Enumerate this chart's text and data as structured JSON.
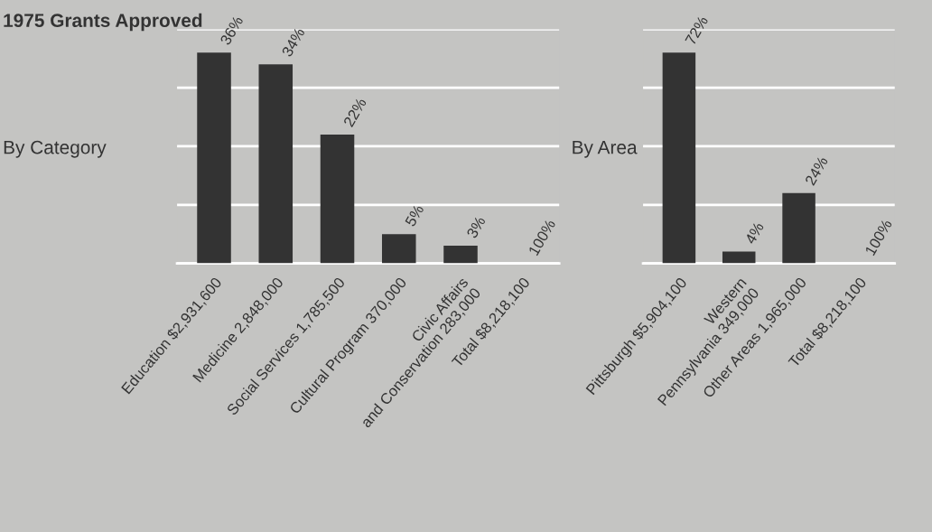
{
  "chart_data": [
    {
      "type": "bar",
      "title": "1975 Grants Approved",
      "subtitle": "By Category",
      "categories": [
        "Education $2,931,600",
        "Medicine 2,848,000",
        "Social Services 1,785,500",
        "Cultural Program 370,000",
        "Civic Affairs\nand Conservation 283,000",
        "Total $8,218,100"
      ],
      "values": [
        36,
        34,
        22,
        5,
        3,
        null
      ],
      "value_labels": [
        "36%",
        "34%",
        "22%",
        "5%",
        "3%",
        "100%"
      ],
      "color": "#333333",
      "ylim": [
        0,
        40
      ],
      "yticks": [
        {
          "value": 0,
          "label": null
        },
        {
          "value": 10,
          "label": null
        },
        {
          "value": 20,
          "label": null
        },
        {
          "value": 30,
          "label": null
        },
        {
          "value": 40,
          "label": null
        }
      ],
      "grid": "y",
      "tick_labels": "x"
    },
    {
      "type": "bar",
      "subtitle": "By Area",
      "categories": [
        "Pittsburgh $5,904,100",
        "Western\nPennsylvania 349,000",
        "Other Areas 1,965,000",
        "Total $8,218,100"
      ],
      "values": [
        72,
        4,
        24,
        null
      ],
      "value_labels": [
        "72%",
        "4%",
        "24%",
        "100%"
      ],
      "color": "#333333",
      "ylim": [
        0,
        80
      ],
      "yticks": [
        {
          "value": 0,
          "label": null
        },
        {
          "value": 20,
          "label": null
        },
        {
          "value": 40,
          "label": null
        },
        {
          "value": 60,
          "label": null
        },
        {
          "value": 80,
          "label": null
        }
      ],
      "grid": "y",
      "tick_labels": "x"
    }
  ]
}
